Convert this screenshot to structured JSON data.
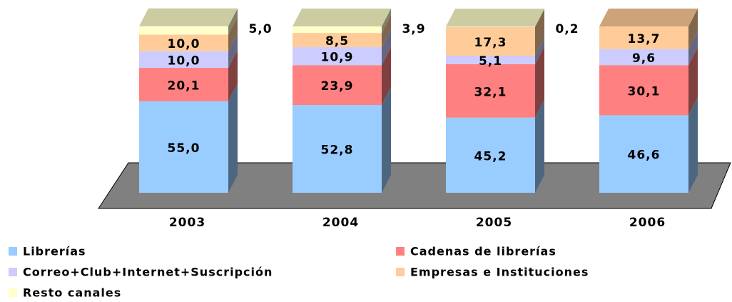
{
  "chart_data": {
    "type": "bar3d_stacked",
    "categories": [
      "2003",
      "2004",
      "2005",
      "2006"
    ],
    "series": [
      {
        "name": "Librerías",
        "color": "#99ccff",
        "values": [
          55.0,
          52.8,
          45.2,
          46.6
        ],
        "value_labels": [
          "55,0",
          "52,8",
          "45,2",
          "46,6"
        ]
      },
      {
        "name": "Cadenas de librerías",
        "color": "#ff8080",
        "values": [
          20.1,
          23.9,
          32.1,
          30.1
        ],
        "value_labels": [
          "20,1",
          "23,9",
          "32,1",
          "30,1"
        ]
      },
      {
        "name": "Correo+Club+Internet+Suscripción",
        "color": "#ccccff",
        "values": [
          10.0,
          10.9,
          5.1,
          9.6
        ],
        "value_labels": [
          "10,0",
          "10,9",
          "5,1",
          "9,6"
        ]
      },
      {
        "name": "Empresas e Instituciones",
        "color": "#ffcc99",
        "values": [
          10.0,
          8.5,
          17.3,
          13.7
        ],
        "value_labels": [
          "10,0",
          "8,5",
          "17,3",
          "13,7"
        ]
      },
      {
        "name": "Resto canales",
        "color": "#ffffcc",
        "values": [
          5.0,
          3.9,
          0.2,
          null
        ],
        "value_labels": [
          "5,0",
          "3,9",
          "0,2",
          null
        ]
      }
    ],
    "legend": "bottom"
  }
}
